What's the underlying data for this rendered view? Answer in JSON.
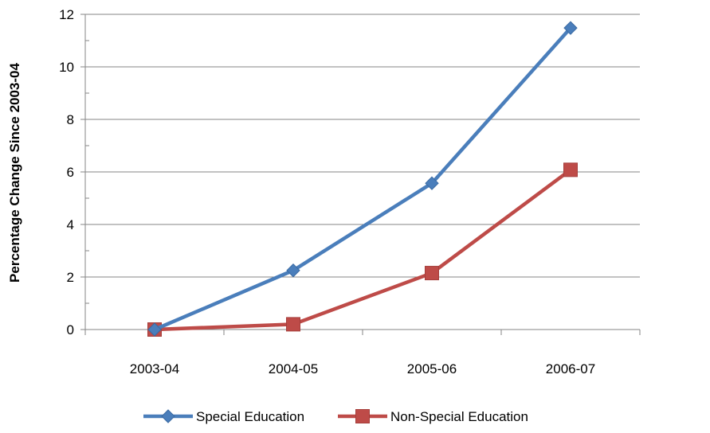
{
  "chart_data": {
    "type": "line",
    "title": "",
    "xlabel": "",
    "ylabel": "Percentage Change Since 2003-04",
    "categories": [
      "2003-04",
      "2004-05",
      "2005-06",
      "2006-07"
    ],
    "ylim": [
      0,
      12
    ],
    "yticks": [
      "0",
      "2",
      "4",
      "6",
      "8",
      "10",
      "12"
    ],
    "grid": true,
    "legend_position": "bottom",
    "series": [
      {
        "name": "Special Education",
        "values": [
          0,
          2.25,
          5.57,
          11.48
        ],
        "color": "#4a7ebb",
        "marker": "diamond"
      },
      {
        "name": "Non-Special Education",
        "values": [
          0,
          0.2,
          2.15,
          6.08
        ],
        "color": "#be4b48",
        "marker": "square"
      }
    ]
  }
}
